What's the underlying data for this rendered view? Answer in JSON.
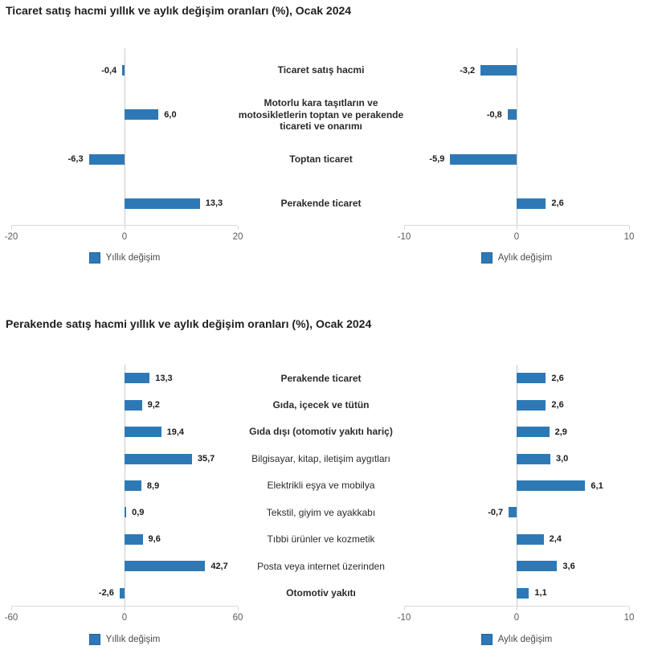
{
  "colors": {
    "bar": "#2E79B5",
    "title_text": "#1f1f1f",
    "value_text": "#1a1a1a",
    "axis_text": "#5a5a5a",
    "axis_line": "#d9d9d9",
    "zero_line": "#c9c9c9",
    "legend_text": "#4a4a4a",
    "background": "#ffffff"
  },
  "chart_data": [
    {
      "type": "bar",
      "orientation": "horizontal",
      "title": "Ticaret satış hacmi yıllık ve aylık değişim oranları (%), Ocak 2024",
      "grid": false,
      "legend_position": "bottom",
      "categories": [
        {
          "label": "Ticaret satış hacmi",
          "bold": true
        },
        {
          "label": "Motorlu kara taşıtların ve motosikletlerin toptan ve perakende ticareti ve onarımı",
          "bold": true
        },
        {
          "label": "Toptan ticaret",
          "bold": true
        },
        {
          "label": "Perakende ticaret",
          "bold": true
        }
      ],
      "panels": [
        {
          "legend": "Yıllık değişim",
          "values": [
            -0.4,
            6.0,
            -6.3,
            13.3
          ],
          "labels": [
            "-0,4",
            "6,0",
            "-6,3",
            "13,3"
          ],
          "xlim": [
            -20,
            20
          ],
          "ticks": [
            -20,
            0,
            20
          ],
          "tick_labels": [
            "-20",
            "0",
            "20"
          ]
        },
        {
          "legend": "Aylık değişim",
          "values": [
            -3.2,
            -0.8,
            -5.9,
            2.6
          ],
          "labels": [
            "-3,2",
            "-0,8",
            "-5,9",
            "2,6"
          ],
          "xlim": [
            -10,
            10
          ],
          "ticks": [
            -10,
            0,
            10
          ],
          "tick_labels": [
            "-10",
            "0",
            "10"
          ]
        }
      ]
    },
    {
      "type": "bar",
      "orientation": "horizontal",
      "title": "Perakende satış hacmi yıllık ve aylık değişim oranları (%), Ocak 2024",
      "grid": false,
      "legend_position": "bottom",
      "categories": [
        {
          "label": "Perakende ticaret",
          "bold": true
        },
        {
          "label": "Gıda, içecek ve tütün",
          "bold": true
        },
        {
          "label": "Gıda dışı (otomotiv yakıtı hariç)",
          "bold": true
        },
        {
          "label": "Bilgisayar, kitap, iletişim aygıtları",
          "bold": false
        },
        {
          "label": "Elektrikli eşya ve mobilya",
          "bold": false
        },
        {
          "label": "Tekstil, giyim ve ayakkabı",
          "bold": false
        },
        {
          "label": "Tıbbi ürünler ve kozmetik",
          "bold": false
        },
        {
          "label": "Posta veya internet üzerinden",
          "bold": false
        },
        {
          "label": "Otomotiv yakıtı",
          "bold": true
        }
      ],
      "panels": [
        {
          "legend": "Yıllık değişim",
          "values": [
            13.3,
            9.2,
            19.4,
            35.7,
            8.9,
            0.9,
            9.6,
            42.7,
            -2.6
          ],
          "labels": [
            "13,3",
            "9,2",
            "19,4",
            "35,7",
            "8,9",
            "0,9",
            "9,6",
            "42,7",
            "-2,6"
          ],
          "xlim": [
            -60,
            60
          ],
          "ticks": [
            -60,
            0,
            60
          ],
          "tick_labels": [
            "-60",
            "0",
            "60"
          ]
        },
        {
          "legend": "Aylık değişim",
          "values": [
            2.6,
            2.6,
            2.9,
            3.0,
            6.1,
            -0.7,
            2.4,
            3.6,
            1.1
          ],
          "labels": [
            "2,6",
            "2,6",
            "2,9",
            "3,0",
            "6,1",
            "-0,7",
            "2,4",
            "3,6",
            "1,1"
          ],
          "xlim": [
            -10,
            10
          ],
          "ticks": [
            -10,
            0,
            10
          ],
          "tick_labels": [
            "-10",
            "0",
            "10"
          ]
        }
      ]
    }
  ]
}
